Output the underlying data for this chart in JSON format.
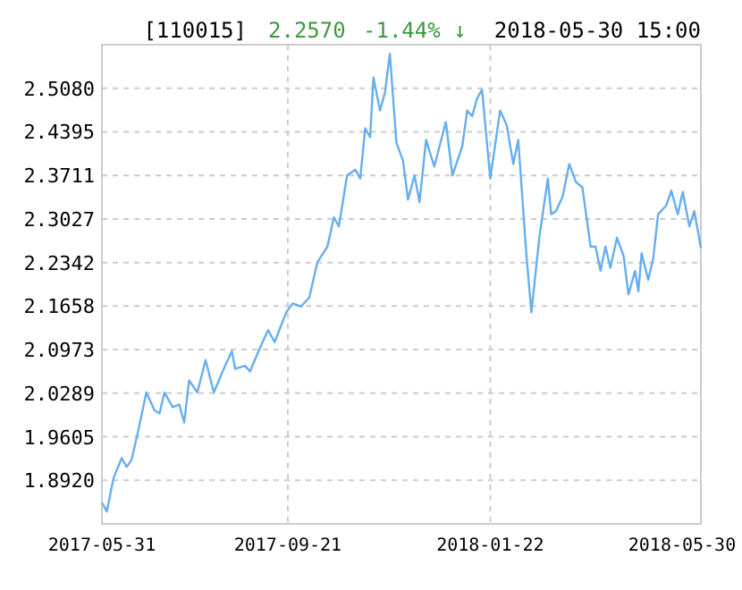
{
  "chart_data": {
    "type": "line",
    "title": "[110015]",
    "annotations": [
      "2.2570",
      "-1.44% ↓",
      "2018-05-30 15:00"
    ],
    "x": [
      "2017-05-31",
      "2017-06-03",
      "2017-06-07",
      "2017-06-12",
      "2017-06-15",
      "2017-06-18",
      "2017-06-22",
      "2017-06-27",
      "2017-07-02",
      "2017-07-05",
      "2017-07-08",
      "2017-07-13",
      "2017-07-17",
      "2017-07-20",
      "2017-07-23",
      "2017-07-28",
      "2017-08-02",
      "2017-08-07",
      "2017-08-13",
      "2017-08-18",
      "2017-08-20",
      "2017-08-26",
      "2017-08-29",
      "2017-09-04",
      "2017-09-09",
      "2017-09-13",
      "2017-09-20",
      "2017-09-24",
      "2017-09-29",
      "2017-10-04",
      "2017-10-09",
      "2017-10-15",
      "2017-10-19",
      "2017-10-22",
      "2017-10-27",
      "2017-11-01",
      "2017-11-04",
      "2017-11-07",
      "2017-11-10",
      "2017-11-12",
      "2017-11-16",
      "2017-11-19",
      "2017-11-22",
      "2017-11-26",
      "2017-11-30",
      "2017-12-03",
      "2017-12-07",
      "2017-12-10",
      "2017-12-14",
      "2017-12-19",
      "2017-12-26",
      "2017-12-30",
      "2018-01-05",
      "2018-01-08",
      "2018-01-11",
      "2018-01-14",
      "2018-01-17",
      "2018-01-22",
      "2018-01-28",
      "2018-02-01",
      "2018-02-05",
      "2018-02-08",
      "2018-02-13",
      "2018-02-16",
      "2018-02-21",
      "2018-02-26",
      "2018-02-28",
      "2018-03-03",
      "2018-03-07",
      "2018-03-11",
      "2018-03-15",
      "2018-03-19",
      "2018-03-24",
      "2018-03-27",
      "2018-03-30",
      "2018-04-02",
      "2018-04-05",
      "2018-04-09",
      "2018-04-13",
      "2018-04-16",
      "2018-04-20",
      "2018-04-22",
      "2018-04-24",
      "2018-04-28",
      "2018-05-01",
      "2018-05-04",
      "2018-05-09",
      "2018-05-12",
      "2018-05-16",
      "2018-05-19",
      "2018-05-23",
      "2018-05-26",
      "2018-05-30"
    ],
    "series": [
      {
        "color": "#66aef0",
        "values": [
          1.857,
          1.843,
          1.895,
          1.927,
          1.913,
          1.924,
          1.969,
          2.03,
          2.002,
          1.997,
          2.03,
          2.007,
          2.011,
          1.983,
          2.049,
          2.03,
          2.081,
          2.03,
          2.067,
          2.095,
          2.067,
          2.072,
          2.063,
          2.1,
          2.128,
          2.109,
          2.156,
          2.17,
          2.165,
          2.179,
          2.235,
          2.259,
          2.305,
          2.291,
          2.371,
          2.38,
          2.366,
          2.445,
          2.431,
          2.525,
          2.473,
          2.501,
          2.562,
          2.422,
          2.394,
          2.333,
          2.371,
          2.329,
          2.427,
          2.385,
          2.455,
          2.371,
          2.417,
          2.473,
          2.464,
          2.492,
          2.506,
          2.366,
          2.473,
          2.45,
          2.389,
          2.427,
          2.245,
          2.156,
          2.277,
          2.366,
          2.31,
          2.315,
          2.338,
          2.389,
          2.361,
          2.352,
          2.259,
          2.259,
          2.221,
          2.259,
          2.226,
          2.273,
          2.245,
          2.184,
          2.221,
          2.189,
          2.249,
          2.207,
          2.24,
          2.31,
          2.324,
          2.347,
          2.31,
          2.345,
          2.291,
          2.315,
          2.257
        ]
      }
    ],
    "xlim": [
      "2017-05-31",
      "2018-05-30"
    ],
    "xticks": [
      {
        "value": "2017-05-31",
        "label": "2017-05-31"
      },
      {
        "value": "2017-09-21",
        "label": "2017-09-21"
      },
      {
        "value": "2018-01-22",
        "label": "2018-01-22"
      },
      {
        "value": "2018-05-30",
        "label": "2018-05-30"
      }
    ],
    "ylim": [
      1.8236,
      2.5764
    ],
    "yticks": [
      {
        "value": 1.892,
        "label": "1.8920"
      },
      {
        "value": 1.9605,
        "label": "1.9605"
      },
      {
        "value": 2.0289,
        "label": "2.0289"
      },
      {
        "value": 2.0973,
        "label": "2.0973"
      },
      {
        "value": 2.1658,
        "label": "2.1658"
      },
      {
        "value": 2.2342,
        "label": "2.2342"
      },
      {
        "value": 2.3027,
        "label": "2.3027"
      },
      {
        "value": 2.3711,
        "label": "2.3711"
      },
      {
        "value": 2.4395,
        "label": "2.4395"
      },
      {
        "value": 2.508,
        "label": "2.5080"
      }
    ],
    "grid": true,
    "line_style": "solid",
    "marker": "none"
  }
}
